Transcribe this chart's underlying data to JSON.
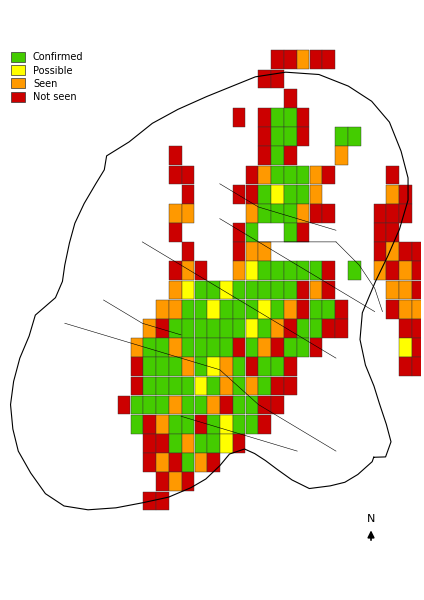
{
  "legend_labels": [
    "Confirmed",
    "Possible",
    "Seen",
    "Not seen"
  ],
  "legend_colors": [
    "#44cc00",
    "#ffff00",
    "#ff9900",
    "#cc0000"
  ],
  "background_color": "#ffffff",
  "colors": {
    "G": "#44cc00",
    "Y": "#ffff00",
    "O": "#ff9900",
    "R": "#cc0000"
  },
  "squares": [
    {
      "col": 21,
      "row": 1,
      "c": "R"
    },
    {
      "col": 22,
      "row": 1,
      "c": "R"
    },
    {
      "col": 23,
      "row": 1,
      "c": "O"
    },
    {
      "col": 24,
      "row": 1,
      "c": "R"
    },
    {
      "col": 25,
      "row": 1,
      "c": "R"
    },
    {
      "col": 20,
      "row": 2,
      "c": "R"
    },
    {
      "col": 21,
      "row": 2,
      "c": "R"
    },
    {
      "col": 22,
      "row": 3,
      "c": "R"
    },
    {
      "col": 20,
      "row": 4,
      "c": "R"
    },
    {
      "col": 21,
      "row": 4,
      "c": "G"
    },
    {
      "col": 22,
      "row": 4,
      "c": "G"
    },
    {
      "col": 23,
      "row": 4,
      "c": "R"
    },
    {
      "col": 18,
      "row": 4,
      "c": "R"
    },
    {
      "col": 20,
      "row": 5,
      "c": "R"
    },
    {
      "col": 21,
      "row": 5,
      "c": "G"
    },
    {
      "col": 22,
      "row": 5,
      "c": "G"
    },
    {
      "col": 23,
      "row": 5,
      "c": "R"
    },
    {
      "col": 20,
      "row": 6,
      "c": "R"
    },
    {
      "col": 21,
      "row": 6,
      "c": "G"
    },
    {
      "col": 22,
      "row": 6,
      "c": "R"
    },
    {
      "col": 26,
      "row": 5,
      "c": "G"
    },
    {
      "col": 27,
      "row": 5,
      "c": "G"
    },
    {
      "col": 26,
      "row": 6,
      "c": "O"
    },
    {
      "col": 13,
      "row": 6,
      "c": "R"
    },
    {
      "col": 19,
      "row": 7,
      "c": "R"
    },
    {
      "col": 20,
      "row": 7,
      "c": "O"
    },
    {
      "col": 21,
      "row": 7,
      "c": "G"
    },
    {
      "col": 22,
      "row": 7,
      "c": "G"
    },
    {
      "col": 23,
      "row": 7,
      "c": "G"
    },
    {
      "col": 24,
      "row": 7,
      "c": "O"
    },
    {
      "col": 25,
      "row": 7,
      "c": "R"
    },
    {
      "col": 13,
      "row": 7,
      "c": "R"
    },
    {
      "col": 14,
      "row": 7,
      "c": "R"
    },
    {
      "col": 18,
      "row": 8,
      "c": "R"
    },
    {
      "col": 19,
      "row": 8,
      "c": "R"
    },
    {
      "col": 20,
      "row": 8,
      "c": "G"
    },
    {
      "col": 21,
      "row": 8,
      "c": "Y"
    },
    {
      "col": 22,
      "row": 8,
      "c": "G"
    },
    {
      "col": 23,
      "row": 8,
      "c": "G"
    },
    {
      "col": 24,
      "row": 8,
      "c": "O"
    },
    {
      "col": 30,
      "row": 7,
      "c": "R"
    },
    {
      "col": 30,
      "row": 8,
      "c": "O"
    },
    {
      "col": 31,
      "row": 8,
      "c": "R"
    },
    {
      "col": 14,
      "row": 8,
      "c": "R"
    },
    {
      "col": 19,
      "row": 9,
      "c": "O"
    },
    {
      "col": 20,
      "row": 9,
      "c": "G"
    },
    {
      "col": 21,
      "row": 9,
      "c": "G"
    },
    {
      "col": 22,
      "row": 9,
      "c": "G"
    },
    {
      "col": 23,
      "row": 9,
      "c": "O"
    },
    {
      "col": 24,
      "row": 9,
      "c": "R"
    },
    {
      "col": 25,
      "row": 9,
      "c": "R"
    },
    {
      "col": 29,
      "row": 9,
      "c": "R"
    },
    {
      "col": 30,
      "row": 9,
      "c": "R"
    },
    {
      "col": 31,
      "row": 9,
      "c": "R"
    },
    {
      "col": 13,
      "row": 9,
      "c": "O"
    },
    {
      "col": 14,
      "row": 9,
      "c": "O"
    },
    {
      "col": 13,
      "row": 10,
      "c": "R"
    },
    {
      "col": 18,
      "row": 10,
      "c": "R"
    },
    {
      "col": 19,
      "row": 10,
      "c": "G"
    },
    {
      "col": 22,
      "row": 10,
      "c": "G"
    },
    {
      "col": 23,
      "row": 10,
      "c": "R"
    },
    {
      "col": 29,
      "row": 10,
      "c": "R"
    },
    {
      "col": 30,
      "row": 10,
      "c": "R"
    },
    {
      "col": 14,
      "row": 11,
      "c": "R"
    },
    {
      "col": 18,
      "row": 11,
      "c": "R"
    },
    {
      "col": 19,
      "row": 11,
      "c": "O"
    },
    {
      "col": 20,
      "row": 11,
      "c": "O"
    },
    {
      "col": 29,
      "row": 11,
      "c": "R"
    },
    {
      "col": 30,
      "row": 11,
      "c": "O"
    },
    {
      "col": 31,
      "row": 11,
      "c": "R"
    },
    {
      "col": 32,
      "row": 11,
      "c": "R"
    },
    {
      "col": 13,
      "row": 12,
      "c": "R"
    },
    {
      "col": 14,
      "row": 12,
      "c": "O"
    },
    {
      "col": 15,
      "row": 12,
      "c": "R"
    },
    {
      "col": 18,
      "row": 12,
      "c": "O"
    },
    {
      "col": 19,
      "row": 12,
      "c": "Y"
    },
    {
      "col": 20,
      "row": 12,
      "c": "G"
    },
    {
      "col": 21,
      "row": 12,
      "c": "G"
    },
    {
      "col": 22,
      "row": 12,
      "c": "G"
    },
    {
      "col": 23,
      "row": 12,
      "c": "G"
    },
    {
      "col": 24,
      "row": 12,
      "c": "G"
    },
    {
      "col": 25,
      "row": 12,
      "c": "R"
    },
    {
      "col": 27,
      "row": 12,
      "c": "G"
    },
    {
      "col": 29,
      "row": 12,
      "c": "O"
    },
    {
      "col": 30,
      "row": 12,
      "c": "R"
    },
    {
      "col": 31,
      "row": 12,
      "c": "O"
    },
    {
      "col": 32,
      "row": 12,
      "c": "R"
    },
    {
      "col": 13,
      "row": 13,
      "c": "O"
    },
    {
      "col": 14,
      "row": 13,
      "c": "Y"
    },
    {
      "col": 15,
      "row": 13,
      "c": "G"
    },
    {
      "col": 16,
      "row": 13,
      "c": "G"
    },
    {
      "col": 17,
      "row": 13,
      "c": "Y"
    },
    {
      "col": 18,
      "row": 13,
      "c": "G"
    },
    {
      "col": 19,
      "row": 13,
      "c": "G"
    },
    {
      "col": 20,
      "row": 13,
      "c": "G"
    },
    {
      "col": 21,
      "row": 13,
      "c": "G"
    },
    {
      "col": 22,
      "row": 13,
      "c": "G"
    },
    {
      "col": 23,
      "row": 13,
      "c": "R"
    },
    {
      "col": 24,
      "row": 13,
      "c": "O"
    },
    {
      "col": 25,
      "row": 13,
      "c": "R"
    },
    {
      "col": 30,
      "row": 13,
      "c": "O"
    },
    {
      "col": 31,
      "row": 13,
      "c": "O"
    },
    {
      "col": 32,
      "row": 13,
      "c": "R"
    },
    {
      "col": 33,
      "row": 13,
      "c": "R"
    },
    {
      "col": 12,
      "row": 14,
      "c": "O"
    },
    {
      "col": 13,
      "row": 14,
      "c": "O"
    },
    {
      "col": 14,
      "row": 14,
      "c": "G"
    },
    {
      "col": 15,
      "row": 14,
      "c": "G"
    },
    {
      "col": 16,
      "row": 14,
      "c": "Y"
    },
    {
      "col": 17,
      "row": 14,
      "c": "G"
    },
    {
      "col": 18,
      "row": 14,
      "c": "G"
    },
    {
      "col": 19,
      "row": 14,
      "c": "G"
    },
    {
      "col": 20,
      "row": 14,
      "c": "Y"
    },
    {
      "col": 21,
      "row": 14,
      "c": "G"
    },
    {
      "col": 22,
      "row": 14,
      "c": "O"
    },
    {
      "col": 23,
      "row": 14,
      "c": "R"
    },
    {
      "col": 24,
      "row": 14,
      "c": "G"
    },
    {
      "col": 25,
      "row": 14,
      "c": "G"
    },
    {
      "col": 26,
      "row": 14,
      "c": "R"
    },
    {
      "col": 30,
      "row": 14,
      "c": "R"
    },
    {
      "col": 31,
      "row": 14,
      "c": "O"
    },
    {
      "col": 32,
      "row": 14,
      "c": "O"
    },
    {
      "col": 33,
      "row": 14,
      "c": "R"
    },
    {
      "col": 11,
      "row": 15,
      "c": "O"
    },
    {
      "col": 12,
      "row": 15,
      "c": "R"
    },
    {
      "col": 13,
      "row": 15,
      "c": "G"
    },
    {
      "col": 14,
      "row": 15,
      "c": "G"
    },
    {
      "col": 15,
      "row": 15,
      "c": "G"
    },
    {
      "col": 16,
      "row": 15,
      "c": "G"
    },
    {
      "col": 17,
      "row": 15,
      "c": "G"
    },
    {
      "col": 18,
      "row": 15,
      "c": "G"
    },
    {
      "col": 19,
      "row": 15,
      "c": "Y"
    },
    {
      "col": 20,
      "row": 15,
      "c": "G"
    },
    {
      "col": 21,
      "row": 15,
      "c": "O"
    },
    {
      "col": 22,
      "row": 15,
      "c": "R"
    },
    {
      "col": 23,
      "row": 15,
      "c": "G"
    },
    {
      "col": 24,
      "row": 15,
      "c": "G"
    },
    {
      "col": 25,
      "row": 15,
      "c": "R"
    },
    {
      "col": 26,
      "row": 15,
      "c": "R"
    },
    {
      "col": 31,
      "row": 15,
      "c": "R"
    },
    {
      "col": 32,
      "row": 15,
      "c": "R"
    },
    {
      "col": 10,
      "row": 16,
      "c": "O"
    },
    {
      "col": 11,
      "row": 16,
      "c": "G"
    },
    {
      "col": 12,
      "row": 16,
      "c": "G"
    },
    {
      "col": 13,
      "row": 16,
      "c": "O"
    },
    {
      "col": 14,
      "row": 16,
      "c": "G"
    },
    {
      "col": 15,
      "row": 16,
      "c": "G"
    },
    {
      "col": 16,
      "row": 16,
      "c": "G"
    },
    {
      "col": 17,
      "row": 16,
      "c": "G"
    },
    {
      "col": 18,
      "row": 16,
      "c": "R"
    },
    {
      "col": 19,
      "row": 16,
      "c": "G"
    },
    {
      "col": 20,
      "row": 16,
      "c": "O"
    },
    {
      "col": 21,
      "row": 16,
      "c": "R"
    },
    {
      "col": 22,
      "row": 16,
      "c": "G"
    },
    {
      "col": 23,
      "row": 16,
      "c": "G"
    },
    {
      "col": 24,
      "row": 16,
      "c": "R"
    },
    {
      "col": 31,
      "row": 16,
      "c": "Y"
    },
    {
      "col": 32,
      "row": 16,
      "c": "R"
    },
    {
      "col": 10,
      "row": 17,
      "c": "R"
    },
    {
      "col": 11,
      "row": 17,
      "c": "G"
    },
    {
      "col": 12,
      "row": 17,
      "c": "G"
    },
    {
      "col": 13,
      "row": 17,
      "c": "G"
    },
    {
      "col": 14,
      "row": 17,
      "c": "O"
    },
    {
      "col": 15,
      "row": 17,
      "c": "G"
    },
    {
      "col": 16,
      "row": 17,
      "c": "Y"
    },
    {
      "col": 17,
      "row": 17,
      "c": "O"
    },
    {
      "col": 18,
      "row": 17,
      "c": "G"
    },
    {
      "col": 19,
      "row": 17,
      "c": "R"
    },
    {
      "col": 20,
      "row": 17,
      "c": "G"
    },
    {
      "col": 21,
      "row": 17,
      "c": "G"
    },
    {
      "col": 22,
      "row": 17,
      "c": "R"
    },
    {
      "col": 31,
      "row": 17,
      "c": "R"
    },
    {
      "col": 32,
      "row": 17,
      "c": "R"
    },
    {
      "col": 10,
      "row": 18,
      "c": "R"
    },
    {
      "col": 11,
      "row": 18,
      "c": "G"
    },
    {
      "col": 12,
      "row": 18,
      "c": "G"
    },
    {
      "col": 13,
      "row": 18,
      "c": "G"
    },
    {
      "col": 14,
      "row": 18,
      "c": "G"
    },
    {
      "col": 15,
      "row": 18,
      "c": "Y"
    },
    {
      "col": 16,
      "row": 18,
      "c": "G"
    },
    {
      "col": 17,
      "row": 18,
      "c": "O"
    },
    {
      "col": 18,
      "row": 18,
      "c": "G"
    },
    {
      "col": 19,
      "row": 18,
      "c": "O"
    },
    {
      "col": 20,
      "row": 18,
      "c": "G"
    },
    {
      "col": 21,
      "row": 18,
      "c": "R"
    },
    {
      "col": 22,
      "row": 18,
      "c": "R"
    },
    {
      "col": 9,
      "row": 19,
      "c": "R"
    },
    {
      "col": 10,
      "row": 19,
      "c": "G"
    },
    {
      "col": 11,
      "row": 19,
      "c": "G"
    },
    {
      "col": 12,
      "row": 19,
      "c": "G"
    },
    {
      "col": 13,
      "row": 19,
      "c": "O"
    },
    {
      "col": 14,
      "row": 19,
      "c": "G"
    },
    {
      "col": 15,
      "row": 19,
      "c": "G"
    },
    {
      "col": 16,
      "row": 19,
      "c": "O"
    },
    {
      "col": 17,
      "row": 19,
      "c": "R"
    },
    {
      "col": 18,
      "row": 19,
      "c": "G"
    },
    {
      "col": 19,
      "row": 19,
      "c": "G"
    },
    {
      "col": 20,
      "row": 19,
      "c": "R"
    },
    {
      "col": 21,
      "row": 19,
      "c": "R"
    },
    {
      "col": 10,
      "row": 20,
      "c": "G"
    },
    {
      "col": 11,
      "row": 20,
      "c": "R"
    },
    {
      "col": 12,
      "row": 20,
      "c": "O"
    },
    {
      "col": 13,
      "row": 20,
      "c": "G"
    },
    {
      "col": 14,
      "row": 20,
      "c": "G"
    },
    {
      "col": 15,
      "row": 20,
      "c": "R"
    },
    {
      "col": 16,
      "row": 20,
      "c": "G"
    },
    {
      "col": 17,
      "row": 20,
      "c": "Y"
    },
    {
      "col": 18,
      "row": 20,
      "c": "G"
    },
    {
      "col": 19,
      "row": 20,
      "c": "G"
    },
    {
      "col": 20,
      "row": 20,
      "c": "R"
    },
    {
      "col": 11,
      "row": 21,
      "c": "R"
    },
    {
      "col": 12,
      "row": 21,
      "c": "R"
    },
    {
      "col": 13,
      "row": 21,
      "c": "G"
    },
    {
      "col": 14,
      "row": 21,
      "c": "O"
    },
    {
      "col": 15,
      "row": 21,
      "c": "G"
    },
    {
      "col": 16,
      "row": 21,
      "c": "G"
    },
    {
      "col": 17,
      "row": 21,
      "c": "Y"
    },
    {
      "col": 18,
      "row": 21,
      "c": "R"
    },
    {
      "col": 11,
      "row": 22,
      "c": "R"
    },
    {
      "col": 12,
      "row": 22,
      "c": "O"
    },
    {
      "col": 13,
      "row": 22,
      "c": "R"
    },
    {
      "col": 14,
      "row": 22,
      "c": "G"
    },
    {
      "col": 15,
      "row": 22,
      "c": "O"
    },
    {
      "col": 16,
      "row": 22,
      "c": "R"
    },
    {
      "col": 12,
      "row": 23,
      "c": "R"
    },
    {
      "col": 13,
      "row": 23,
      "c": "O"
    },
    {
      "col": 14,
      "row": 23,
      "c": "R"
    },
    {
      "col": 11,
      "row": 24,
      "c": "R"
    },
    {
      "col": 12,
      "row": 24,
      "c": "R"
    }
  ]
}
